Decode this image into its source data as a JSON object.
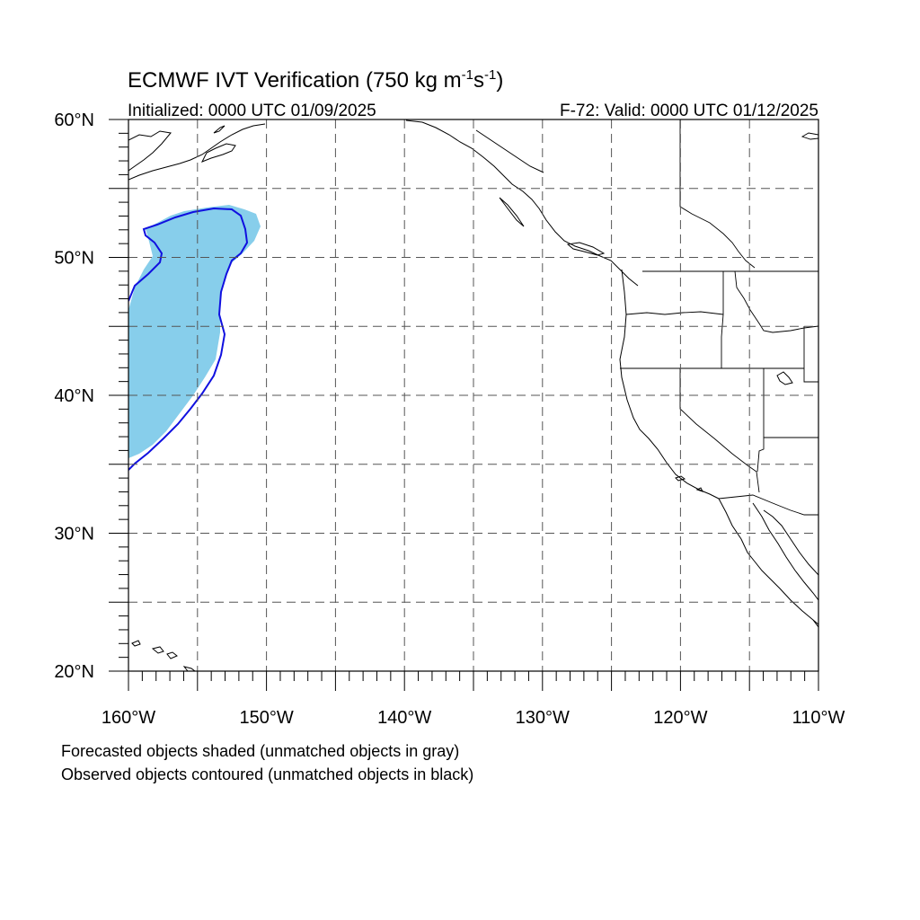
{
  "title": {
    "main": "ECMWF IVT Verification (750 kg m",
    "sup1": "-1",
    "mid": "s",
    "sup2": "-1",
    "end": ")"
  },
  "subtitle_left": "Initialized: 0000 UTC 01/09/2025",
  "subtitle_right": "F-72: Valid: 0000 UTC 01/12/2025",
  "lat_labels": [
    {
      "value": 60,
      "text": "60°N"
    },
    {
      "value": 50,
      "text": "50°N"
    },
    {
      "value": 40,
      "text": "40°N"
    },
    {
      "value": 30,
      "text": "30°N"
    },
    {
      "value": 20,
      "text": "20°N"
    }
  ],
  "lon_labels": [
    {
      "value": -160,
      "text": "160°W"
    },
    {
      "value": -150,
      "text": "150°W"
    },
    {
      "value": -140,
      "text": "140°W"
    },
    {
      "value": -130,
      "text": "130°W"
    },
    {
      "value": -120,
      "text": "120°W"
    },
    {
      "value": -110,
      "text": "110°W"
    }
  ],
  "map_extent": {
    "lon_min": -160,
    "lon_max": -110,
    "lat_min": 20,
    "lat_max": 60
  },
  "grid": {
    "lon_step": 5,
    "lat_step": 5,
    "style": "dashed"
  },
  "colors": {
    "forecast_fill": "#87ceeb",
    "observed_contour": "#1010e0",
    "coast": "#000000",
    "grid": "#555555"
  },
  "caption_line1": "Forecasted objects shaded (unmatched objects in gray)",
  "caption_line2": "Observed objects contoured (unmatched objects in black)"
}
